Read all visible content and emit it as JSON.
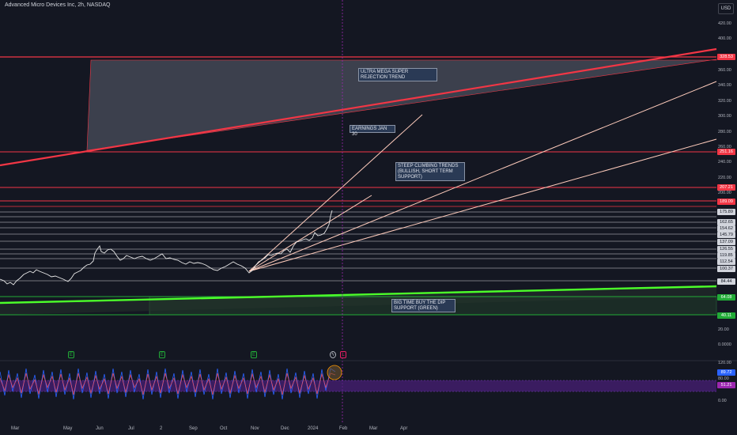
{
  "chart": {
    "title": "Advanced Micro Devices Inc, 2h, NASDAQ",
    "currency": "USD"
  },
  "price_axis": {
    "ticks": [
      "420.00",
      "400.00",
      "360.00",
      "340.00",
      "320.00",
      "300.00",
      "280.00",
      "260.00",
      "240.00",
      "220.00",
      "200.00",
      "20.00",
      "0.0000"
    ]
  },
  "price_labels": [
    {
      "value": "328.53",
      "style": "red"
    },
    {
      "value": "251.16",
      "style": "red"
    },
    {
      "value": "207.21",
      "style": "red"
    },
    {
      "value": "189.09",
      "style": "red"
    },
    {
      "value": "175.89",
      "style": "white"
    },
    {
      "value": "162.65",
      "style": "white"
    },
    {
      "value": "154.62",
      "style": "white"
    },
    {
      "value": "145.79",
      "style": "white"
    },
    {
      "value": "137.09",
      "style": "white"
    },
    {
      "value": "126.55",
      "style": "white"
    },
    {
      "value": "119.85",
      "style": "white"
    },
    {
      "value": "112.54",
      "style": "white"
    },
    {
      "value": "100.37",
      "style": "white"
    },
    {
      "value": "84.44",
      "style": "white"
    },
    {
      "value": "64.08",
      "style": "green"
    },
    {
      "value": "40.11",
      "style": "green"
    }
  ],
  "oscillator": {
    "ticks": [
      "120.00",
      "80.00",
      "0.00"
    ],
    "labels": [
      {
        "value": "89.72",
        "style": "blue"
      },
      {
        "value": "51.21",
        "style": "purple"
      }
    ]
  },
  "time_axis": {
    "labels": [
      "Mar",
      "May",
      "Jun",
      "Jul",
      "2",
      "Sep",
      "Oct",
      "Nov",
      "Dec",
      "2024",
      "Feb",
      "Mar",
      "Apr"
    ]
  },
  "annotations": [
    {
      "text": "ULTRA MEGA SUPER REJECTION TREND"
    },
    {
      "text": "EARNINGS JAN 30"
    },
    {
      "text": "STEEP CLIMBING TRENDS (BULLISH, SHORT TERM SUPPORT)"
    },
    {
      "text": "BIG TIME BUY THE DIP SUPPORT (GREEN)"
    }
  ],
  "events": {
    "earnings_marker": "E",
    "dividend_marker": "L"
  },
  "colors": {
    "background": "#141722",
    "resistance": "#f23645",
    "support": "#22ab37",
    "trend_up": "#ffccbc"
  }
}
